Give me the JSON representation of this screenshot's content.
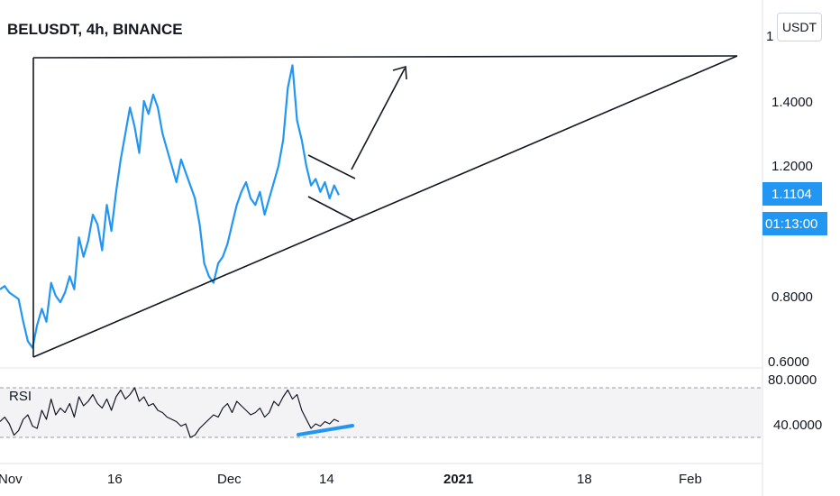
{
  "chart_data": {
    "type": "line",
    "title": "BELUSDT, 4h, BINANCE",
    "currency_button": "USDT",
    "price_axis_ticks": [
      "1.4000",
      "1.2000",
      "0.8000",
      "0.6000"
    ],
    "price_axis_partial": "1",
    "x_ticks": [
      "Nov",
      "16",
      "Dec",
      "14",
      "2021",
      "18",
      "Feb"
    ],
    "last_price": "1.1104",
    "countdown": "01:13:00",
    "accent": "#2196f3",
    "series": [
      {
        "values": [
          0.82,
          0.83,
          0.81,
          0.8,
          0.79,
          0.72,
          0.66,
          0.64,
          0.71,
          0.76,
          0.72,
          0.84,
          0.8,
          0.78,
          0.81,
          0.86,
          0.82,
          0.98,
          0.92,
          0.97,
          1.05,
          1.02,
          0.94,
          1.08,
          1.0,
          1.12,
          1.22,
          1.3,
          1.38,
          1.32,
          1.24,
          1.4,
          1.36,
          1.42,
          1.38,
          1.3,
          1.25,
          1.2,
          1.15,
          1.22,
          1.18,
          1.14,
          1.1,
          1.02,
          0.9,
          0.86,
          0.84,
          0.9,
          0.92,
          0.96,
          1.02,
          1.08,
          1.12,
          1.15,
          1.1,
          1.08,
          1.12,
          1.05,
          1.1,
          1.15,
          1.2,
          1.28,
          1.44,
          1.51,
          1.34,
          1.28,
          1.2,
          1.14,
          1.16,
          1.12,
          1.15,
          1.1,
          1.14,
          1.11
        ]
      }
    ],
    "rsi": {
      "label": "RSI",
      "ticks": [
        "80.0000",
        "40.0000"
      ],
      "values": [
        42,
        46,
        40,
        30,
        34,
        44,
        48,
        38,
        36,
        52,
        44,
        62,
        48,
        54,
        50,
        58,
        46,
        64,
        56,
        60,
        66,
        58,
        54,
        62,
        52,
        64,
        70,
        62,
        66,
        72,
        60,
        64,
        56,
        58,
        52,
        50,
        46,
        44,
        42,
        38,
        40,
        28,
        30,
        36,
        40,
        44,
        48,
        46,
        54,
        58,
        50,
        60,
        56,
        52,
        48,
        50,
        54,
        46,
        50,
        60,
        56,
        64,
        70,
        62,
        66,
        52,
        44,
        36,
        40,
        38,
        42,
        40,
        44,
        42
      ]
    }
  }
}
